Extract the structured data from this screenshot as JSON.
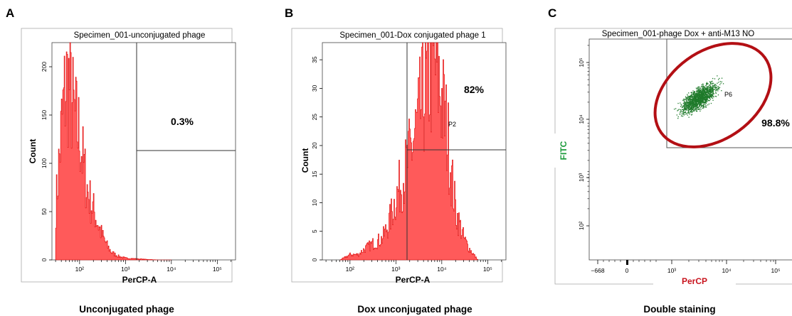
{
  "colors": {
    "hist_fill": "#ff5a5a",
    "hist_stroke": "#e00000",
    "dots": "#1e7a2a",
    "ellipse": "#b30f14",
    "fitc": "#1a9a3a",
    "percp": "#c8141e"
  },
  "panels": [
    {
      "letter": "A",
      "title": "Specimen_001-unconjugated phage",
      "xlabel": "PerCP-A",
      "ylabel": "Count",
      "yticks": [
        "0",
        "50",
        "100",
        "150",
        "200"
      ],
      "xticks": [
        "10²",
        "10³",
        "10⁴",
        "10⁵"
      ],
      "percent": "0.3%",
      "gate": "",
      "caption": "Unconjugated phage"
    },
    {
      "letter": "B",
      "title": "Specimen_001-Dox conjugated phage 1",
      "xlabel": "PerCP-A",
      "ylabel": "Count",
      "yticks": [
        "0",
        "5",
        "10",
        "15",
        "20",
        "25",
        "30",
        "35"
      ],
      "xticks": [
        "10²",
        "10³",
        "10⁴",
        "10⁵"
      ],
      "percent": "82%",
      "gate": "P2",
      "caption": "Dox unconjugated phage"
    },
    {
      "letter": "C",
      "title": "Specimen_001-phage Dox + anti-M13 NO",
      "xlabel": "PerCP",
      "ylabel": "FITC",
      "yticks": [
        "10²",
        "10³",
        "10⁴",
        "10⁵"
      ],
      "xticks": [
        "−668",
        "0",
        "10³",
        "10⁴",
        "10⁵"
      ],
      "percent": "98.8%",
      "gate": "P6",
      "caption": "Double staining"
    }
  ],
  "chart_data": [
    {
      "type": "area",
      "title": "Specimen_001-unconjugated phage",
      "xlabel": "PerCP-A",
      "ylabel": "Count",
      "xscale": "log",
      "xlim": [
        25,
        250000
      ],
      "ylim": [
        0,
        225
      ],
      "gate_percent": "0.3%",
      "x": [
        30,
        40,
        50,
        60,
        70,
        80,
        90,
        100,
        110,
        120,
        135,
        150,
        170,
        200,
        250,
        300,
        400,
        500,
        700,
        1000,
        2000,
        5000,
        10000
      ],
      "y": [
        60,
        150,
        200,
        195,
        170,
        155,
        145,
        140,
        120,
        105,
        90,
        75,
        65,
        55,
        40,
        28,
        15,
        8,
        4,
        2,
        1,
        0,
        0
      ]
    },
    {
      "type": "area",
      "title": "Specimen_001-Dox conjugated phage 1",
      "xlabel": "PerCP-A",
      "ylabel": "Count",
      "xscale": "log",
      "xlim": [
        25,
        250000
      ],
      "ylim": [
        0,
        38
      ],
      "gate_percent": "82%",
      "gate": "P2",
      "x": [
        60,
        100,
        150,
        200,
        300,
        500,
        700,
        1000,
        1500,
        2000,
        3000,
        4000,
        5000,
        6000,
        7000,
        8000,
        10000,
        13000,
        16000,
        20000,
        30000,
        40000,
        60000
      ],
      "y": [
        0,
        1,
        1,
        2,
        3,
        4,
        7,
        12,
        16,
        20,
        26,
        31,
        34,
        36,
        37,
        35,
        30,
        24,
        16,
        9,
        4,
        2,
        0
      ]
    },
    {
      "type": "scatter",
      "title": "Specimen_001-phage Dox + anti-M13 NO",
      "xlabel": "PerCP",
      "ylabel": "FITC",
      "xscale": "log",
      "yscale": "log",
      "xlim": [
        -668,
        250000
      ],
      "ylim": [
        30,
        500000
      ],
      "gate_percent": "98.8%",
      "gate": "P6",
      "clusters": [
        {
          "name": "",
          "center_x": 3000,
          "center_y": 50000
        }
      ]
    }
  ]
}
